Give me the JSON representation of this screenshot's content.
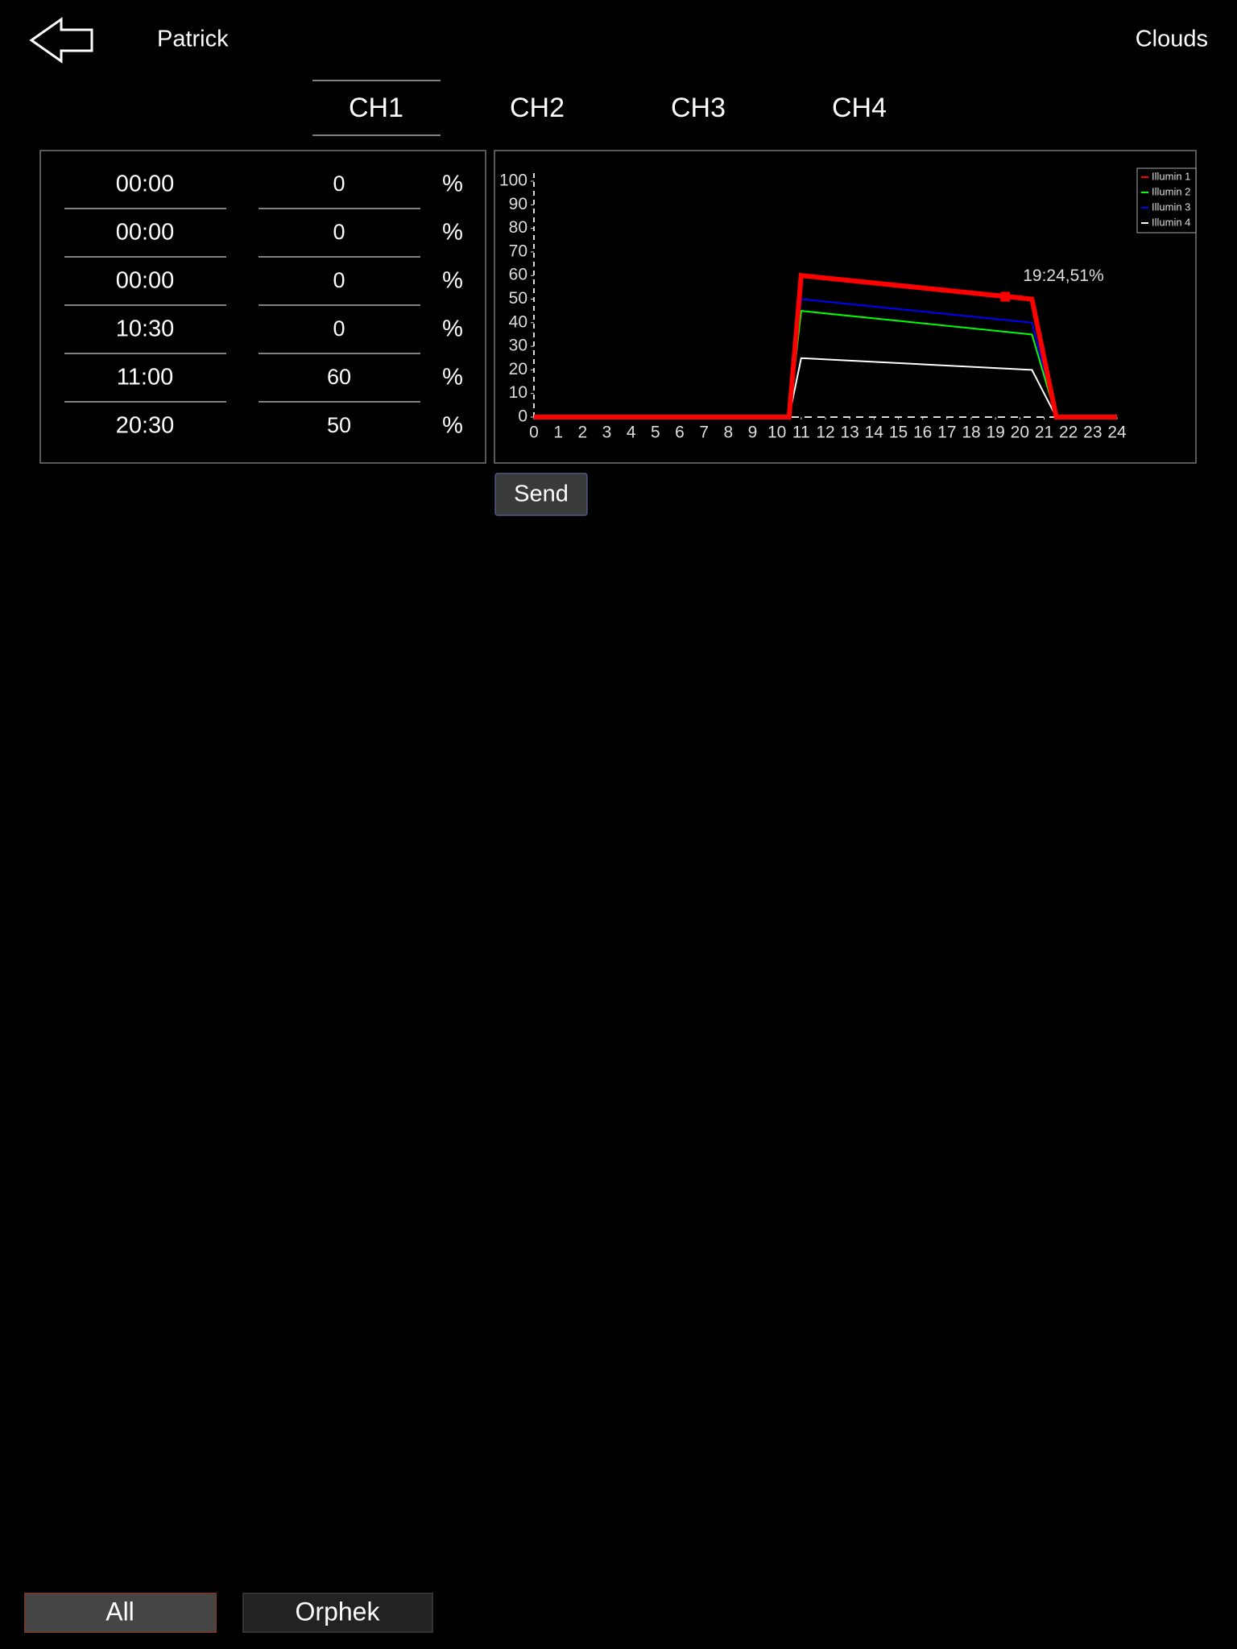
{
  "header": {
    "title": "Patrick",
    "right": "Clouds"
  },
  "tabs": [
    "CH1",
    "CH2",
    "CH3",
    "CH4"
  ],
  "schedule": {
    "rows": [
      [
        "00:00",
        "0",
        "%"
      ],
      [
        "00:00",
        "0",
        "%"
      ],
      [
        "00:00",
        "0",
        "%"
      ],
      [
        "10:30",
        "0",
        "%"
      ],
      [
        "11:00",
        "60",
        "%"
      ],
      [
        "20:30",
        "50",
        "%"
      ]
    ]
  },
  "chart_data": {
    "type": "line",
    "x": [
      0,
      10.5,
      11,
      20.5,
      21.5,
      24
    ],
    "series": [
      {
        "name": "Illumin 1",
        "color": "#ff0000",
        "values": [
          0,
          0,
          60,
          50,
          0,
          0
        ]
      },
      {
        "name": "Illumin 2",
        "color": "#00ff00",
        "values": [
          0,
          0,
          45,
          35,
          0,
          0
        ]
      },
      {
        "name": "Illumin 3",
        "color": "#0000ff",
        "values": [
          0,
          0,
          50,
          40,
          0,
          0
        ]
      },
      {
        "name": "Illumin 4",
        "color": "#ffffff",
        "values": [
          0,
          0,
          25,
          20,
          0,
          0
        ]
      }
    ],
    "xlim": [
      0,
      24
    ],
    "xticks": [
      0,
      1,
      2,
      3,
      4,
      5,
      6,
      7,
      8,
      9,
      10,
      11,
      12,
      13,
      14,
      15,
      16,
      17,
      18,
      19,
      20,
      21,
      22,
      23,
      24
    ],
    "ylim": [
      0,
      100
    ],
    "yticks": [
      0,
      10,
      20,
      30,
      40,
      50,
      60,
      70,
      80,
      90,
      100
    ],
    "legend": "upper right",
    "annotations": [
      {
        "text": "19:24,51%",
        "x": 19.4,
        "y": 51
      }
    ]
  },
  "send": "Send",
  "footer": {
    "buttons": [
      "All",
      "Orphek"
    ]
  }
}
